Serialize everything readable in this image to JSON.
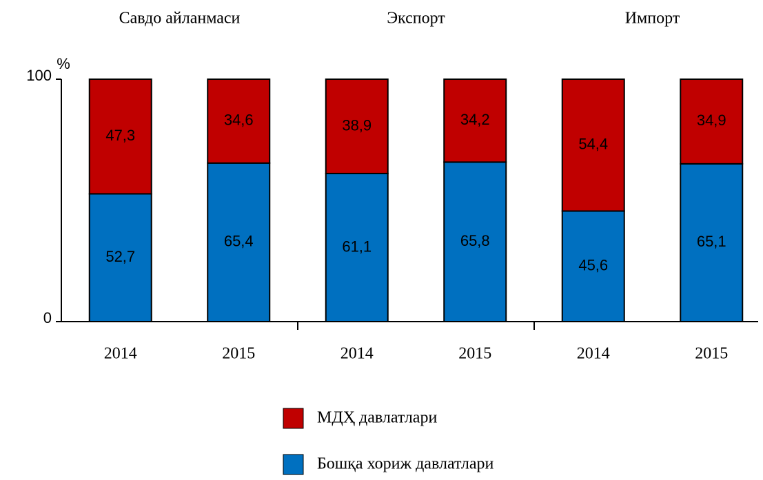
{
  "chart_data": {
    "type": "stacked_bar",
    "groups": [
      "Савдо айланмаси",
      "Экспорт",
      "Импорт"
    ],
    "categories": [
      "2014",
      "2015",
      "2014",
      "2015",
      "2014",
      "2015"
    ],
    "y_label": "%",
    "ylim": [
      0,
      100
    ],
    "yticks": [
      0,
      100
    ],
    "series": [
      {
        "name": "Бошқа хориж давлатлари",
        "color": "#0070c0",
        "values": [
          52.7,
          65.4,
          61.1,
          65.8,
          45.6,
          65.1
        ],
        "value_labels": [
          "52,7",
          "65,4",
          "61,1",
          "65,8",
          "45,6",
          "65,1"
        ]
      },
      {
        "name": "МДҲ давлатлари",
        "color": "#c00000",
        "values": [
          47.3,
          34.6,
          38.9,
          34.2,
          54.4,
          34.9
        ],
        "value_labels": [
          "47,3",
          "34,6",
          "38,9",
          "34,2",
          "54,4",
          "34,9"
        ]
      }
    ]
  }
}
